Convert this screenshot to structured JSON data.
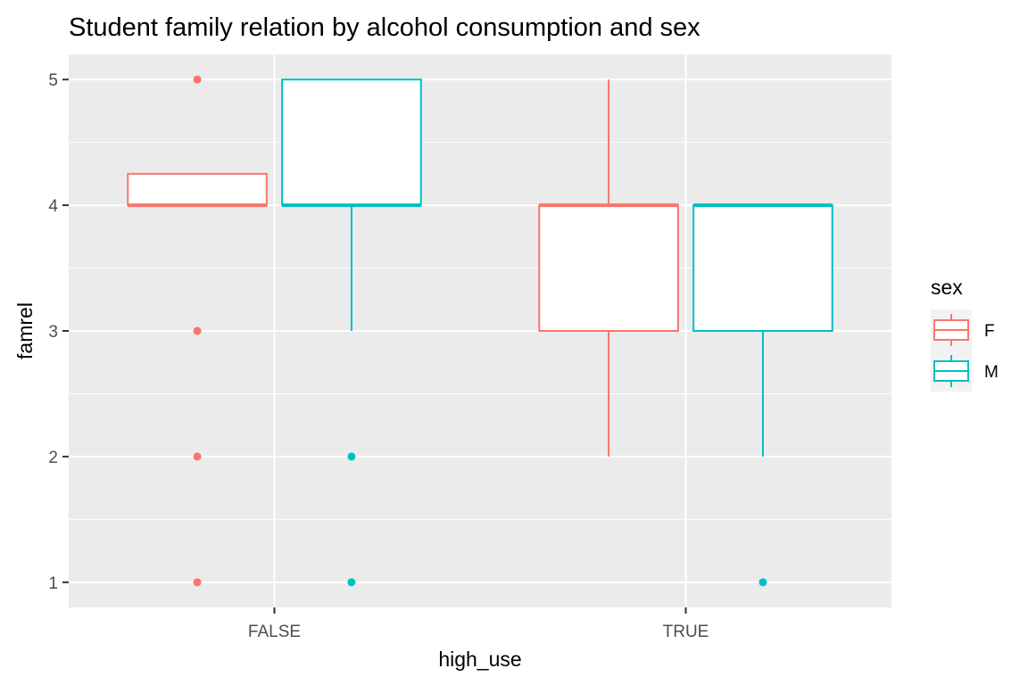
{
  "chart_data": {
    "type": "boxplot",
    "title": "Student family relation by alcohol consumption and sex",
    "xlabel": "high_use",
    "ylabel": "famrel",
    "categories": [
      "FALSE",
      "TRUE"
    ],
    "y_ticks": [
      1,
      2,
      3,
      4,
      5
    ],
    "ylim": [
      0.8,
      5.2
    ],
    "grid": true,
    "legend": {
      "title": "sex",
      "position": "right"
    },
    "series": [
      {
        "name": "F",
        "color": "#F8766D",
        "boxes": [
          {
            "category": "FALSE",
            "q1": 4,
            "median": 4,
            "q3": 4.25,
            "whisker_low": 4,
            "whisker_high": 4.25,
            "outliers": [
              1,
              2,
              3,
              5
            ]
          },
          {
            "category": "TRUE",
            "q1": 3,
            "median": 4,
            "q3": 4,
            "whisker_low": 2,
            "whisker_high": 5,
            "outliers": []
          }
        ]
      },
      {
        "name": "M",
        "color": "#00BFC4",
        "boxes": [
          {
            "category": "FALSE",
            "q1": 4,
            "median": 4,
            "q3": 5,
            "whisker_low": 3,
            "whisker_high": 5,
            "outliers": [
              1,
              2
            ]
          },
          {
            "category": "TRUE",
            "q1": 3,
            "median": 4,
            "q3": 4,
            "whisker_low": 2,
            "whisker_high": 4,
            "outliers": [
              1
            ]
          }
        ]
      }
    ]
  }
}
